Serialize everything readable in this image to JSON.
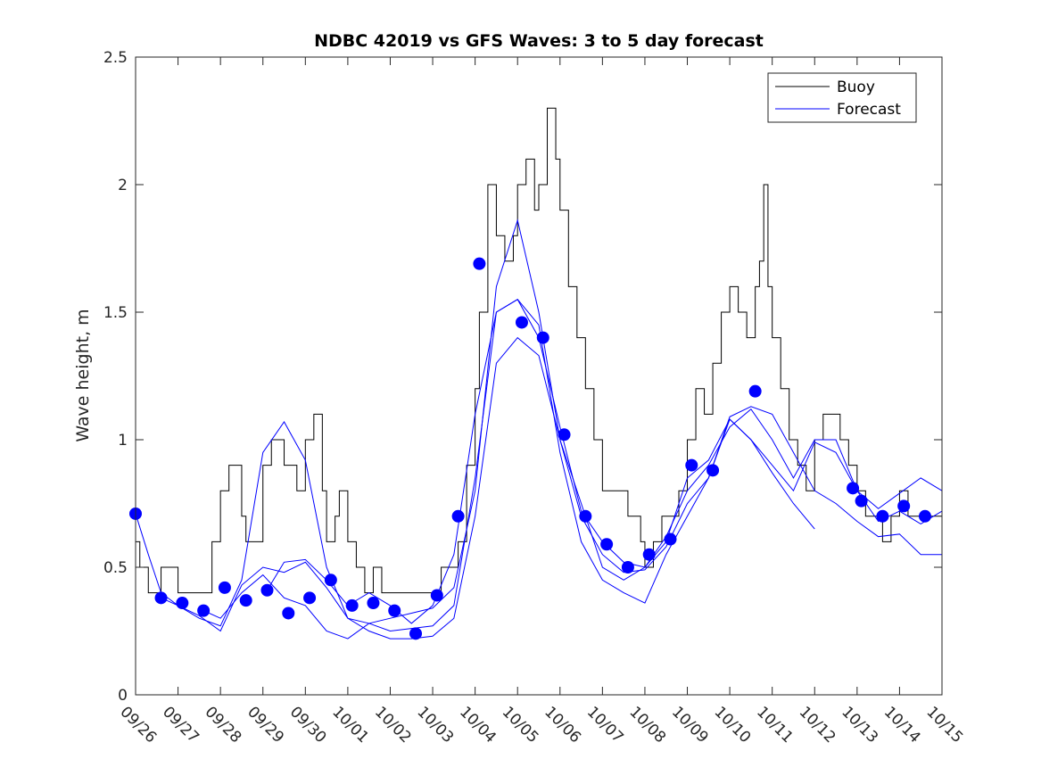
{
  "chart_data": {
    "type": "line",
    "title": "NDBC 42019 vs GFS Waves: 3 to 5 day forecast",
    "xlabel": "",
    "ylabel": "Wave height, m",
    "xlim": [
      0,
      19
    ],
    "ylim": [
      0,
      2.5
    ],
    "x_unit": "days since 09/26",
    "grid": false,
    "legend": {
      "position": "top-right",
      "entries": [
        "Buoy",
        "Forecast"
      ]
    },
    "colors": {
      "buoy": "#000000",
      "forecast": "#0000ff",
      "markers": "#0000ff"
    },
    "x_ticks": [
      {
        "value": 0,
        "label": "09/26"
      },
      {
        "value": 1,
        "label": "09/27"
      },
      {
        "value": 2,
        "label": "09/28"
      },
      {
        "value": 3,
        "label": "09/29"
      },
      {
        "value": 4,
        "label": "09/30"
      },
      {
        "value": 5,
        "label": "10/01"
      },
      {
        "value": 6,
        "label": "10/02"
      },
      {
        "value": 7,
        "label": "10/03"
      },
      {
        "value": 8,
        "label": "10/04"
      },
      {
        "value": 9,
        "label": "10/05"
      },
      {
        "value": 10,
        "label": "10/06"
      },
      {
        "value": 11,
        "label": "10/07"
      },
      {
        "value": 12,
        "label": "10/08"
      },
      {
        "value": 13,
        "label": "10/09"
      },
      {
        "value": 14,
        "label": "10/10"
      },
      {
        "value": 15,
        "label": "10/11"
      },
      {
        "value": 16,
        "label": "10/12"
      },
      {
        "value": 17,
        "label": "10/13"
      },
      {
        "value": 18,
        "label": "10/14"
      },
      {
        "value": 19,
        "label": "10/15"
      }
    ],
    "y_ticks": [
      {
        "value": 0,
        "label": "0"
      },
      {
        "value": 0.5,
        "label": "0.5"
      },
      {
        "value": 1,
        "label": "1"
      },
      {
        "value": 1.5,
        "label": "1.5"
      },
      {
        "value": 2,
        "label": "2"
      },
      {
        "value": 2.5,
        "label": "2.5"
      }
    ],
    "series": [
      {
        "name": "Buoy",
        "style": "step",
        "x": [
          0,
          0.1,
          0.3,
          0.6,
          1.0,
          1.2,
          1.4,
          1.6,
          1.8,
          2.0,
          2.2,
          2.5,
          2.6,
          3.0,
          3.2,
          3.5,
          3.8,
          4.0,
          4.2,
          4.4,
          4.5,
          4.7,
          4.8,
          5.0,
          5.2,
          5.4,
          5.6,
          5.8,
          6.0,
          6.3,
          6.6,
          7.0,
          7.2,
          7.4,
          7.6,
          7.8,
          8.0,
          8.1,
          8.3,
          8.5,
          8.7,
          8.9,
          9.0,
          9.2,
          9.4,
          9.5,
          9.7,
          9.9,
          10.0,
          10.2,
          10.4,
          10.6,
          10.8,
          11.0,
          11.3,
          11.6,
          11.9,
          12.0,
          12.2,
          12.4,
          12.6,
          12.8,
          13.0,
          13.2,
          13.4,
          13.6,
          13.8,
          14.0,
          14.2,
          14.4,
          14.6,
          14.7,
          14.8,
          14.9,
          15.0,
          15.2,
          15.4,
          15.6,
          15.8,
          16.0,
          16.2,
          16.4,
          16.6,
          16.8,
          17.0,
          17.2,
          17.4,
          17.6,
          17.8,
          18.0,
          18.2,
          18.4,
          18.6,
          19.0
        ],
        "y": [
          0.6,
          0.5,
          0.4,
          0.5,
          0.4,
          0.4,
          0.4,
          0.4,
          0.6,
          0.8,
          0.9,
          0.7,
          0.6,
          0.9,
          1.0,
          0.9,
          0.8,
          1.0,
          1.1,
          0.8,
          0.6,
          0.7,
          0.8,
          0.6,
          0.5,
          0.4,
          0.5,
          0.4,
          0.4,
          0.4,
          0.4,
          0.4,
          0.5,
          0.5,
          0.6,
          0.9,
          1.2,
          1.5,
          2.0,
          1.8,
          1.7,
          1.8,
          2.0,
          2.1,
          1.9,
          2.0,
          2.3,
          2.1,
          1.9,
          1.6,
          1.4,
          1.2,
          1.0,
          0.8,
          0.8,
          0.7,
          0.6,
          0.5,
          0.6,
          0.7,
          0.7,
          0.8,
          1.0,
          1.2,
          1.1,
          1.3,
          1.5,
          1.6,
          1.5,
          1.4,
          1.6,
          1.7,
          2.0,
          1.6,
          1.4,
          1.2,
          1.0,
          0.9,
          0.8,
          1.0,
          1.1,
          1.1,
          1.0,
          0.9,
          0.8,
          0.7,
          0.7,
          0.6,
          0.7,
          0.8,
          0.7,
          0.7,
          0.7,
          0.7
        ]
      },
      {
        "name": "Forecast run 1",
        "x": [
          0,
          0.3,
          0.6,
          1.0,
          1.5,
          2.0,
          2.5,
          3.0,
          3.5,
          4.0,
          4.5,
          5.0,
          5.5,
          6.0,
          6.5,
          7.0,
          7.5,
          8.0,
          8.5,
          9.0,
          9.5,
          10.0,
          10.5,
          11.0,
          11.5,
          12.0,
          12.5,
          13.0,
          13.5,
          14.0,
          14.5,
          15.0,
          15.5,
          16.0,
          16.5,
          17.0,
          17.5,
          18.0,
          18.5,
          19.0
        ],
        "y": [
          0.71,
          0.55,
          0.4,
          0.35,
          0.3,
          0.27,
          0.45,
          0.95,
          1.07,
          0.92,
          0.5,
          0.3,
          0.25,
          0.22,
          0.22,
          0.23,
          0.3,
          0.7,
          1.3,
          1.4,
          1.33,
          1.0,
          0.75,
          0.5,
          0.45,
          0.5,
          0.62,
          0.8,
          0.9,
          1.05,
          1.12,
          1.0,
          0.85,
          1.0,
          1.0,
          0.8,
          0.73,
          0.79,
          0.85,
          0.8
        ]
      },
      {
        "name": "Forecast run 2",
        "x": [
          0.6,
          1.0,
          1.5,
          2.0,
          2.5,
          3.0,
          3.5,
          4.0,
          4.5,
          5.0,
          5.5,
          6.0,
          6.5,
          7.0,
          7.5,
          8.0,
          8.5,
          9.0,
          9.5,
          10.0,
          10.5,
          11.0,
          11.5,
          12.0,
          12.5,
          13.0,
          13.5,
          14.0,
          14.5,
          15.0,
          15.5,
          16.0,
          16.5,
          17.0,
          17.5,
          18.0,
          18.5,
          19.0
        ],
        "y": [
          0.38,
          0.35,
          0.31,
          0.25,
          0.43,
          0.5,
          0.48,
          0.52,
          0.42,
          0.3,
          0.28,
          0.25,
          0.26,
          0.27,
          0.35,
          0.85,
          1.5,
          1.55,
          1.4,
          1.05,
          0.72,
          0.6,
          0.52,
          0.5,
          0.6,
          0.85,
          0.92,
          1.08,
          1.0,
          0.9,
          0.8,
          0.99,
          0.95,
          0.8,
          0.68,
          0.72,
          0.67,
          0.72
        ]
      },
      {
        "name": "Forecast run 3",
        "x": [
          1.6,
          2.0,
          2.5,
          3.0,
          3.5,
          4.0,
          4.5,
          5.0,
          5.5,
          6.0,
          6.5,
          7.0,
          7.5,
          8.0,
          8.5,
          9.0,
          9.5,
          10.0,
          10.5,
          11.0,
          11.5,
          12.0,
          12.5,
          13.0,
          13.5,
          14.0,
          14.5,
          15.0,
          15.5,
          16.0,
          16.5,
          17.0,
          17.5,
          18.0,
          18.5,
          19.0
        ],
        "y": [
          0.33,
          0.3,
          0.4,
          0.47,
          0.38,
          0.35,
          0.25,
          0.22,
          0.28,
          0.3,
          0.32,
          0.34,
          0.42,
          0.8,
          1.6,
          1.86,
          1.5,
          1.0,
          0.7,
          0.55,
          0.48,
          0.49,
          0.58,
          0.75,
          0.85,
          1.09,
          1.13,
          1.1,
          0.95,
          0.8,
          0.75,
          0.68,
          0.62,
          0.63,
          0.55,
          0.55
        ]
      },
      {
        "name": "Forecast run 4",
        "x": [
          3.1,
          3.5,
          4.0,
          4.5,
          5.0,
          5.5,
          6.0,
          6.5,
          7.0,
          7.5,
          8.0,
          8.5,
          9.0,
          9.5,
          10.0,
          10.5,
          11.0,
          11.5,
          12.0,
          12.5,
          13.0,
          13.5,
          14.0,
          14.5,
          15.0,
          15.5,
          16.0
        ],
        "y": [
          0.41,
          0.52,
          0.53,
          0.45,
          0.35,
          0.4,
          0.35,
          0.28,
          0.35,
          0.55,
          1.1,
          1.5,
          1.55,
          1.45,
          0.95,
          0.6,
          0.45,
          0.4,
          0.36,
          0.55,
          0.7,
          0.85,
          1.08,
          1.0,
          0.87,
          0.75,
          0.65
        ]
      }
    ],
    "markers": {
      "name": "Forecast points",
      "x": [
        0,
        0.6,
        1.1,
        1.6,
        2.1,
        2.6,
        3.1,
        3.6,
        4.1,
        4.6,
        5.1,
        5.6,
        6.1,
        6.6,
        7.1,
        7.6,
        8.1,
        9.1,
        9.6,
        10.1,
        10.6,
        11.1,
        11.6,
        12.1,
        12.6,
        13.1,
        13.6,
        14.6,
        16.9,
        17.1,
        17.6,
        18.1,
        18.6
      ],
      "y": [
        0.71,
        0.38,
        0.36,
        0.33,
        0.42,
        0.37,
        0.41,
        0.32,
        0.38,
        0.45,
        0.35,
        0.36,
        0.33,
        0.24,
        0.39,
        0.7,
        1.69,
        1.46,
        1.4,
        1.02,
        0.7,
        0.59,
        0.5,
        0.55,
        0.61,
        0.9,
        0.88,
        1.19,
        0.81,
        0.76,
        0.7,
        0.74,
        0.7
      ]
    }
  }
}
